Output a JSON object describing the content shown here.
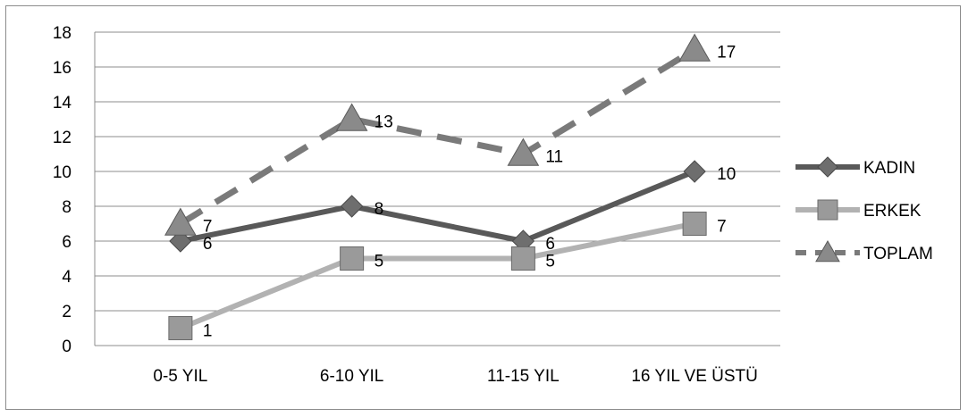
{
  "chart_data": {
    "type": "line",
    "title": "",
    "xlabel": "",
    "ylabel": "",
    "categories": [
      "0-5 YIL",
      "6-10 YIL",
      "11-15 YIL",
      "16 YIL VE ÜSTÜ"
    ],
    "ylim": [
      0,
      18
    ],
    "yticks": [
      "0",
      "2",
      "4",
      "6",
      "8",
      "10",
      "12",
      "14",
      "16",
      "18"
    ],
    "grid": true,
    "legend_position": "right",
    "series": [
      {
        "name": "KADIN",
        "values": [
          6,
          8,
          6,
          10
        ],
        "labels": [
          "6",
          "8",
          "6",
          "10"
        ],
        "marker": "diamond",
        "line_style": "solid",
        "color": "#595959",
        "marker_color": "#6e6e6e"
      },
      {
        "name": "ERKEK",
        "values": [
          1,
          5,
          5,
          7
        ],
        "labels": [
          "1",
          "5",
          "5",
          "7"
        ],
        "marker": "square",
        "line_style": "solid",
        "color": "#b2b2b2",
        "marker_color": "#9a9a9a"
      },
      {
        "name": "TOPLAM",
        "values": [
          7,
          13,
          11,
          17
        ],
        "labels": [
          "7",
          "13",
          "11",
          "17"
        ],
        "marker": "triangle",
        "line_style": "dashed",
        "color": "#7a7a7a",
        "marker_color": "#8a8a8a"
      }
    ]
  }
}
